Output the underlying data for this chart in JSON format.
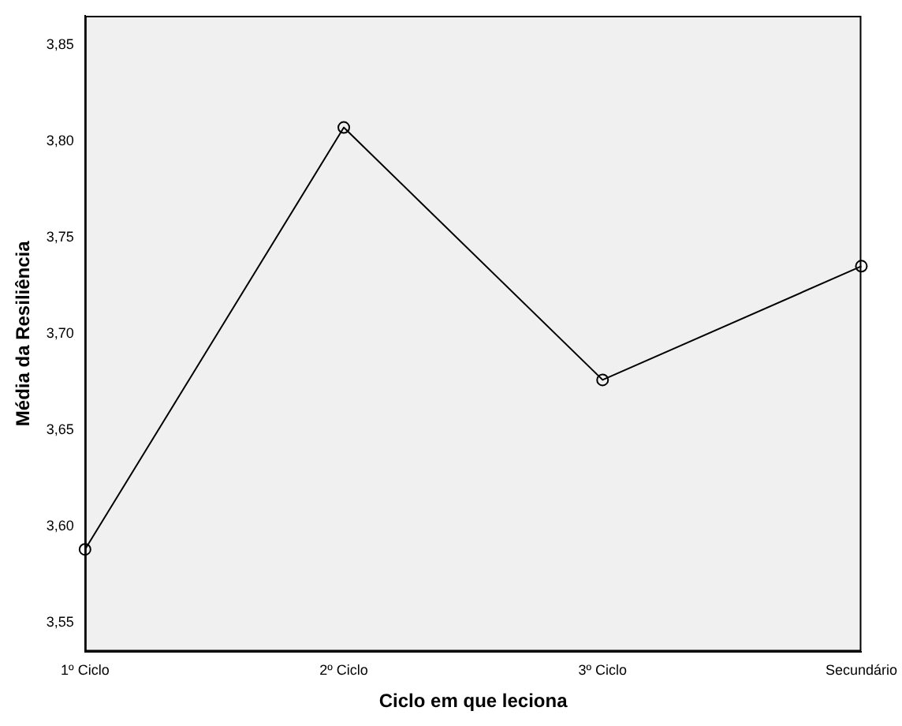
{
  "chart_data": {
    "type": "line",
    "xlabel": "Ciclo em que leciona",
    "ylabel": "Média da Resiliência",
    "categories": [
      "1º Ciclo",
      "2º Ciclo",
      "3º Ciclo",
      "Secundário"
    ],
    "series": [
      {
        "color": "#000000",
        "values": [
          3.588,
          3.807,
          3.676,
          3.735
        ]
      }
    ],
    "ylim": [
      3.535,
      3.865
    ],
    "yticks": [
      {
        "value": 3.55,
        "label": "3,55"
      },
      {
        "value": 3.6,
        "label": "3,60"
      },
      {
        "value": 3.65,
        "label": "3,65"
      },
      {
        "value": 3.7,
        "label": "3,70"
      },
      {
        "value": 3.75,
        "label": "3,75"
      },
      {
        "value": 3.8,
        "label": "3,80"
      },
      {
        "value": 3.85,
        "label": "3,85"
      }
    ],
    "grid": false,
    "legend": false,
    "marker": "circle",
    "line_style": "solid"
  }
}
